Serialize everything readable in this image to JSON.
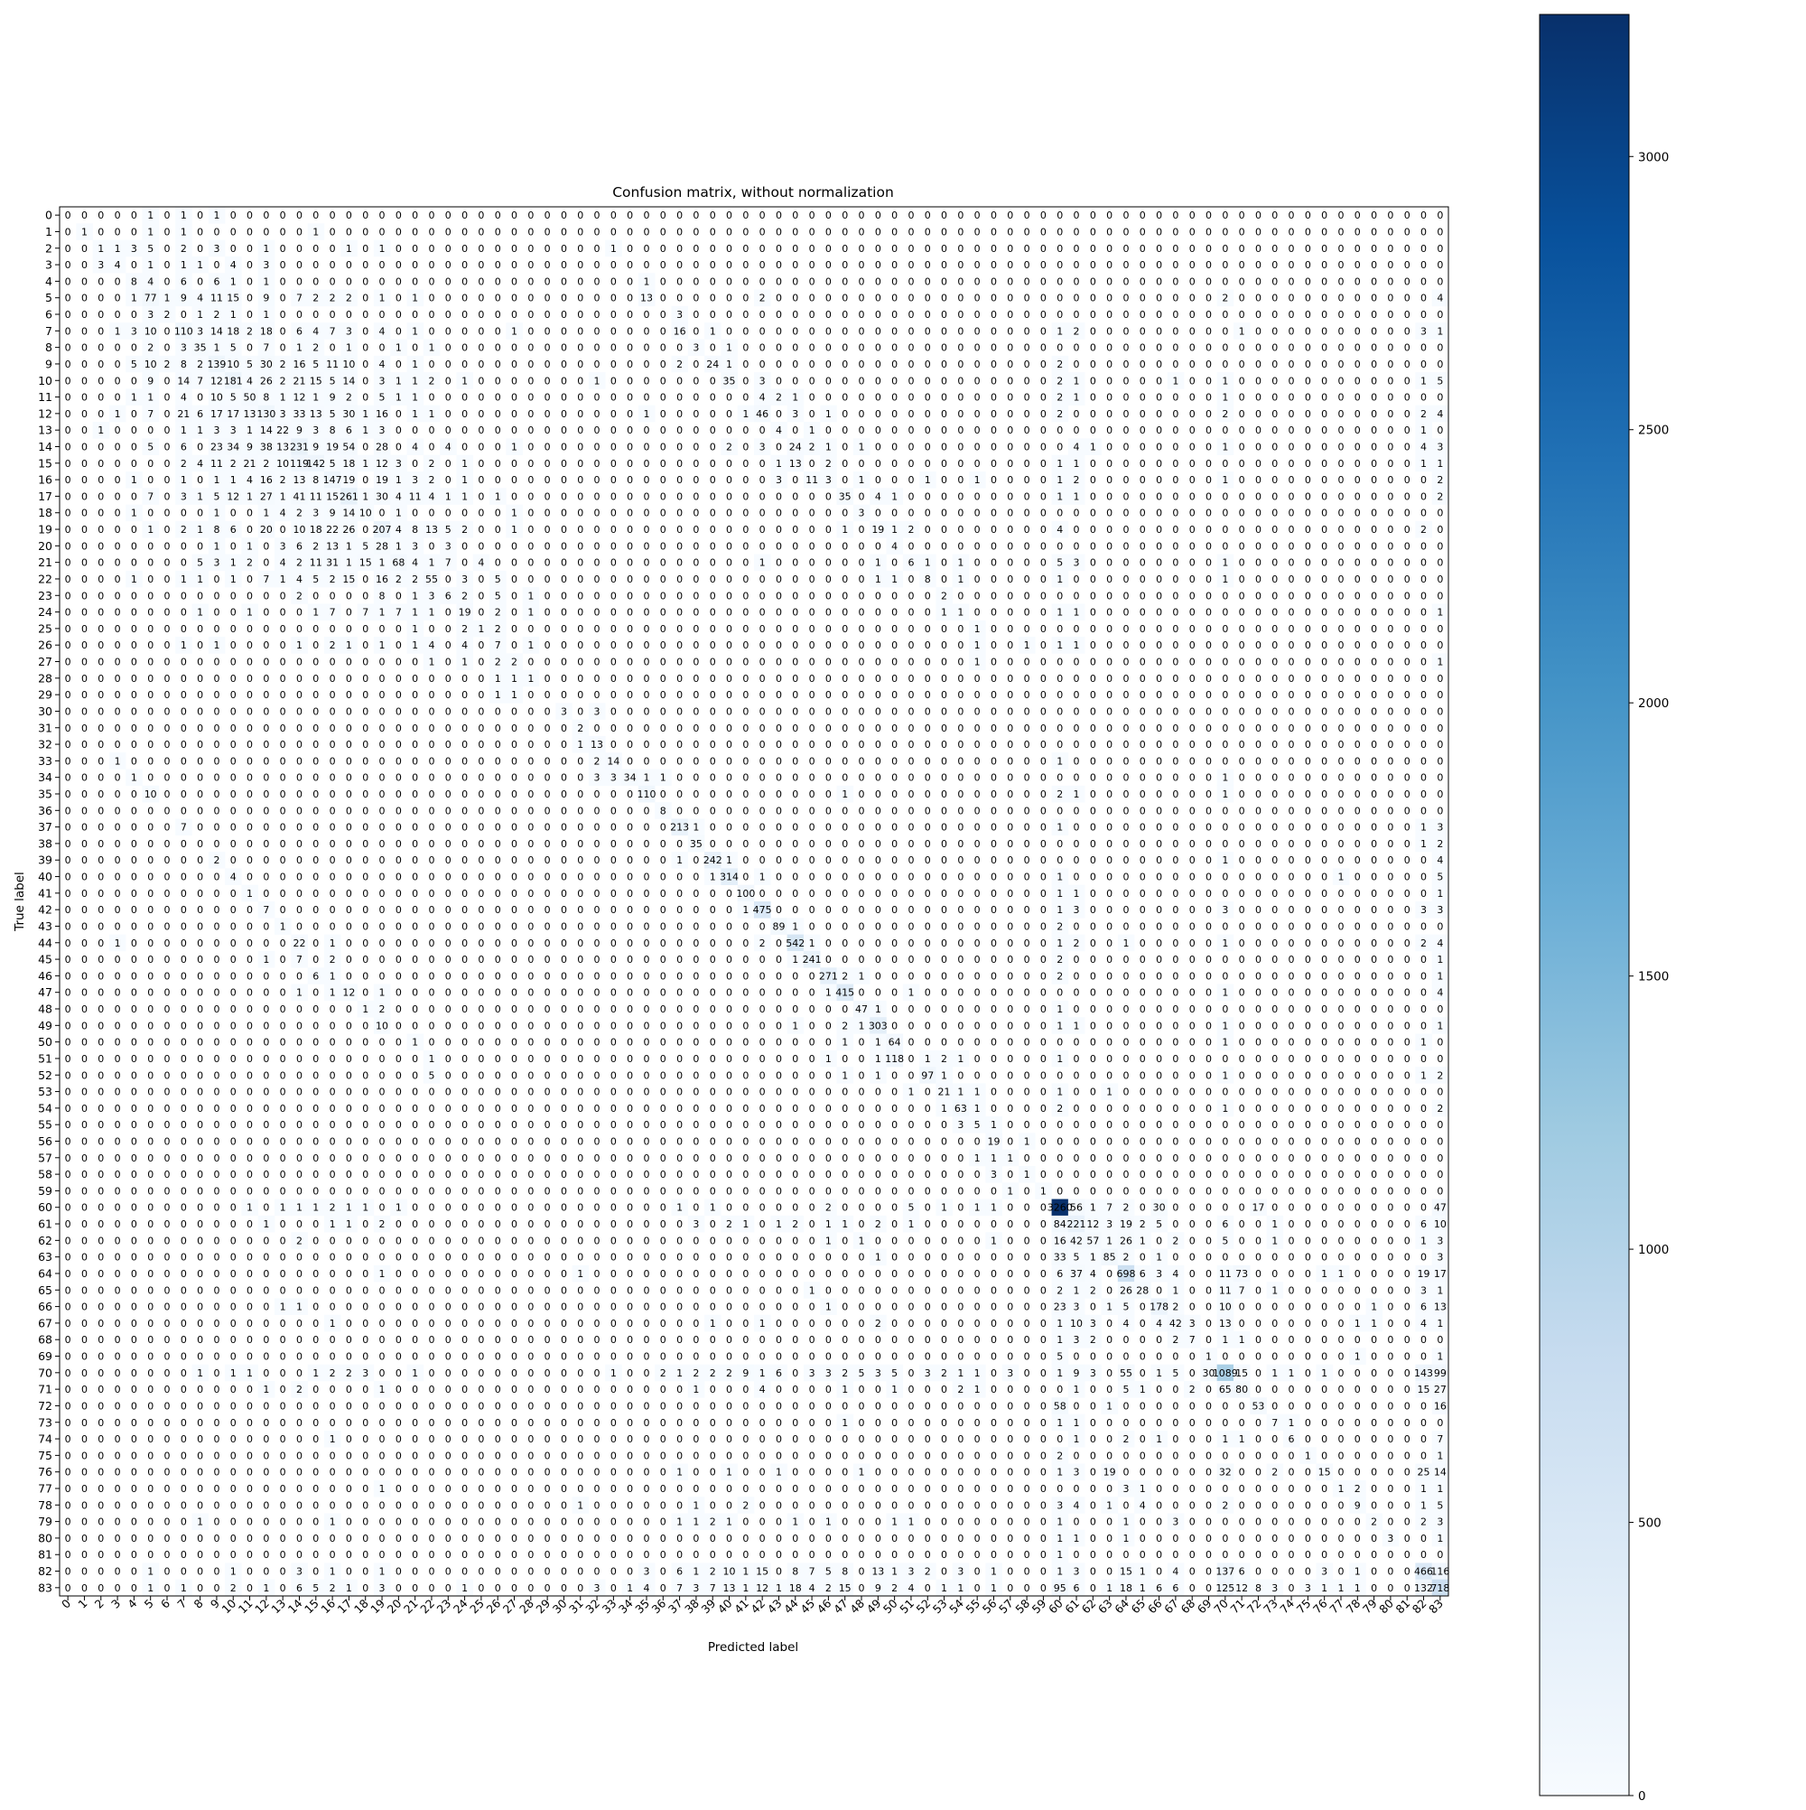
{
  "chart_data": {
    "type": "heatmap",
    "title": "Confusion matrix, without normalization",
    "xlabel": "Predicted label",
    "ylabel": "True label",
    "classes": [
      "0",
      "1",
      "2",
      "3",
      "4",
      "5",
      "6",
      "7",
      "8",
      "9",
      "10",
      "11",
      "12",
      "13",
      "14",
      "15",
      "16",
      "17",
      "18",
      "19",
      "20",
      "21",
      "22",
      "23",
      "24",
      "25",
      "26",
      "27",
      "28",
      "29",
      "30",
      "31",
      "32",
      "33",
      "34",
      "35",
      "36",
      "37",
      "38",
      "39",
      "40",
      "41",
      "42",
      "43",
      "44",
      "45",
      "46",
      "47",
      "48",
      "49",
      "50",
      "51",
      "52",
      "53",
      "54",
      "55",
      "56",
      "57",
      "58",
      "59",
      "60",
      "61",
      "62",
      "63",
      "64",
      "65",
      "66",
      "67",
      "68",
      "69",
      "70",
      "71",
      "72",
      "73",
      "74",
      "75",
      "76",
      "77",
      "78",
      "79",
      "80",
      "81",
      "82",
      "83"
    ],
    "colormap": "Blues",
    "color_range": [
      0,
      3260
    ],
    "colorbar_ticks": [
      "0",
      "500",
      "1000",
      "1500",
      "2000",
      "2500",
      "3000"
    ],
    "colorbar_tick_values": [
      0,
      500,
      1000,
      1500,
      2000,
      2500,
      3000
    ],
    "rows": [
      "0 0 0 0 0 1 0 1 0 1 0 0 0 0 0 0 0 0 0 0 0 0 0 0 0 0 0 0 0 0 0 0 0 0 0 0 0 0 0 0 0 0 0 0 0 0 0 0 0 0 0 0 0 0 0 0 0 0 0 0 0 0 0 0 0 0 0 0 0 0 0 0 0 0 0 0 0 0 0 0 0 0 0 0",
      "0 1 0 0 0 1 0 1 0 0 0 0 0 0 0 1 0 0 0 0 0 0 0 0 0 0 0 0 0 0 0 0 0 0 0 0 0 0 0 0 0 0 0 0 0 0 0 0 0 0 0 0 0 0 0 0 0 0 0 0 0 0 0 0 0 0 0 0 0 0 0 0 0 0 0 0 0 0 0 0 0 0 0 0",
      "0 0 1 1 3 5 0 2 0 3 0 0 1 0 0 0 0 1 0 1 0 0 0 0 0 0 0 0 0 0 0 0 0 1 0 0 0 0 0 0 0 0 0 0 0 0 0 0 0 0 0 0 0 0 0 0 0 0 0 0 0 0 0 0 0 0 0 0 0 0 0 0 0 0 0 0 0 0 0 0 0 0 0 0",
      "0 0 3 4 0 1 0 1 1 0 4 0 3 0 0 0 0 0 0 0 0 0 0 0 0 0 0 0 0 0 0 0 0 0 0 0 0 0 0 0 0 0 0 0 0 0 0 0 0 0 0 0 0 0 0 0 0 0 0 0 0 0 0 0 0 0 0 0 0 0 0 0 0 0 0 0 0 0 0 0 0 0 0 0",
      "0 0 0 0 8 4 0 6 0 6 1 0 1 0 0 0 0 0 0 0 0 0 0 0 0 0 0 0 0 0 0 0 0 0 0 1 0 0 0 0 0 0 0 0 0 0 0 0 0 0 0 0 0 0 0 0 0 0 0 0 0 0 0 0 0 0 0 0 0 0 0 0 0 0 0 0 0 0 0 0 0 0 0 0",
      "0 0 0 0 1 77 1 9 4 11 15 0 9 0 7 2 2 2 0 1 0 1 0 0 0 0 0 0 0 0 0 0 0 0 0 13 0 0 0 0 0 0 2 0 0 0 0 0 0 0 0 0 0 0 0 0 0 0 0 0 0 0 0 0 0 0 0 0 0 0 2 0 0 0 0 0 0 0 0 0 0 0 0 4",
      "0 0 0 0 0 3 2 0 1 2 1 0 1 0 0 0 0 0 0 0 0 0 0 0 0 0 0 0 0 0 0 0 0 0 0 0 0 3 0 0 0 0 0 0 0 0 0 0 0 0 0 0 0 0 0 0 0 0 0 0 0 0 0 0 0 0 0 0 0 0 0 0 0 0 0 0 0 0 0 0 0 0 0 0",
      "0 0 0 1 3 10 0 110 3 14 18 2 18 0 6 4 7 3 0 4 0 1 0 0 0 0 0 1 0 0 0 0 0 0 0 0 0 16 0 1 0 0 0 0 0 0 0 0 0 0 0 0 0 0 0 0 0 0 0 0 1 2 0 0 0 0 0 0 0 0 0 1 0 0 0 0 0 0 0 0 0 0 3 1",
      "0 0 0 0 0 2 0 3 35 1 5 0 7 0 1 2 0 1 0 0 1 0 1 0 0 0 0 0 0 0 0 0 0 0 0 0 0 0 3 0 1 0 0 0 0 0 0 0 0 0 0 0 0 0 0 0 0 0 0 0 0 0 0 0 0 0 0 0 0 0 0 0 0 0 0 0 0 0 0 0 0 0 0 0",
      "0 0 0 0 5 10 2 8 2 139 10 5 30 2 16 5 11 10 0 4 0 1 0 0 0 0 0 0 0 0 0 0 0 0 0 0 0 2 0 24 1 0 0 0 0 0 0 0 0 0 0 0 0 0 0 0 0 0 0 0 2 0 0 0 0 0 0 0 0 0 0 0 0 0 0 0 0 0 0 0 0 0 0 0",
      "0 0 0 0 0 9 0 14 7 12 181 4 26 2 21 15 5 14 0 3 1 1 2 0 1 0 0 0 0 0 0 0 1 0 0 0 0 0 0 0 35 0 3 0 0 0 0 0 0 0 0 0 0 0 0 0 0 0 0 0 2 1 0 0 0 0 0 1 0 0 1 0 0 0 0 0 0 0 0 0 0 0 1 5",
      "0 0 0 0 1 1 0 4 0 10 5 50 8 1 12 1 9 2 0 5 1 1 0 0 0 0 0 0 0 0 0 0 0 0 0 0 0 0 0 0 0 0 4 2 1 0 0 0 0 0 0 0 0 0 0 0 0 0 0 0 2 1 0 0 0 0 0 0 0 0 1 0 0 0 0 0 0 0 0 0 0 0 0 0",
      "0 0 0 1 0 7 0 21 6 17 17 13 130 3 33 13 5 30 1 16 0 1 1 0 0 0 0 0 0 0 0 0 0 0 0 1 0 0 0 0 0 1 46 0 3 0 1 0 0 0 0 0 0 0 0 0 0 0 0 0 2 0 0 0 0 0 0 0 0 0 2 0 0 0 0 0 0 0 0 0 0 0 2 4",
      "0 0 1 0 0 0 0 1 1 3 3 1 14 22 9 3 8 6 1 3 0 0 0 0 0 0 0 0 0 0 0 0 0 0 0 0 0 0 0 0 0 0 0 4 0 1 0 0 0 0 0 0 0 0 0 0 0 0 0 0 0 0 0 0 0 0 0 0 0 0 0 0 0 0 0 0 0 0 0 0 0 0 1 0",
      "0 0 0 0 0 5 0 6 0 23 34 9 38 13 231 9 19 54 0 28 0 4 0 4 0 0 0 1 0 0 0 0 0 0 0 0 0 0 0 0 2 0 3 0 24 2 1 0 1 0 0 0 0 0 0 0 0 0 0 0 0 4 1 0 0 0 0 0 0 0 1 0 0 0 0 0 0 0 0 0 0 0 4 3",
      "0 0 0 0 0 0 0 2 4 11 2 21 2 10 119 142 5 18 1 12 3 0 2 0 1 0 0 0 0 0 0 0 0 0 0 0 0 0 0 0 0 0 0 1 13 0 2 0 0 0 0 0 0 0 0 0 0 0 0 0 1 1 0 0 0 0 0 0 0 0 0 0 0 0 0 0 0 0 0 0 0 0 1 1",
      "0 0 0 0 1 0 0 1 0 1 1 4 16 2 13 8 147 19 0 19 1 3 2 0 1 0 0 0 0 0 0 0 0 0 0 0 0 0 0 0 0 0 0 3 0 11 3 0 1 0 0 0 1 0 0 1 0 0 0 0 1 2 0 0 0 0 0 0 0 0 1 0 0 0 0 0 0 0 0 0 0 0 0 2",
      "0 0 0 0 0 7 0 3 1 5 12 1 27 1 41 11 15 261 1 30 4 11 4 1 1 0 1 0 0 0 0 0 0 0 0 0 0 0 0 0 0 0 0 0 0 0 0 35 0 4 1 0 0 0 0 0 0 0 0 0 1 1 0 0 0 0 0 0 0 0 0 0 0 0 0 0 0 0 0 0 0 0 0 2",
      "0 0 0 0 1 0 0 0 0 1 0 0 1 4 2 3 9 14 10 0 1 0 0 0 0 0 0 1 0 0 0 0 0 0 0 0 0 0 0 0 0 0 0 0 0 0 0 0 3 0 0 0 0 0 0 0 0 0 0 0 0 0 0 0 0 0 0 0 0 0 0 0 0 0 0 0 0 0 0 0 0 0 0 0",
      "0 0 0 0 0 1 0 2 1 8 6 0 20 0 10 18 22 26 0 207 4 8 13 5 2 0 0 1 0 0 0 0 0 0 0 0 0 0 0 0 0 0 0 0 0 0 0 1 0 19 1 2 0 0 0 0 0 0 0 0 4 0 0 0 0 0 0 0 0 0 0 0 0 0 0 0 0 0 0 0 0 0 2 0",
      "0 0 0 0 0 0 0 0 0 1 0 1 0 3 6 2 13 1 5 28 1 3 0 3 0 0 0 0 0 0 0 0 0 0 0 0 0 0 0 0 0 0 0 0 0 0 0 0 0 0 4 0 0 0 0 0 0 0 0 0 0 0 0 0 0 0 0 0 0 0 0 0 0 0 0 0 0 0 0 0 0 0 0 0",
      "0 0 0 0 0 0 0 0 5 3 1 2 0 4 2 11 31 1 15 1 68 4 1 7 0 4 0 0 0 0 0 0 0 0 0 0 0 0 0 0 0 0 1 0 0 0 0 0 0 1 0 6 1 0 1 0 0 0 0 0 5 3 0 0 0 0 0 0 0 0 1 0 0 0 0 0 0 0 0 0 0 0 0 0",
      "0 0 0 0 1 0 0 1 1 0 1 0 7 1 4 5 2 15 0 16 2 2 55 0 3 0 5 0 0 0 0 0 0 0 0 0 0 0 0 0 0 0 0 0 0 0 0 0 0 1 1 0 8 0 1 0 0 0 0 0 1 0 0 0 0 0 0 0 0 0 1 0 0 0 0 0 0 0 0 0 0 0 0 0",
      "0 0 0 0 0 0 0 0 0 0 0 0 0 0 2 0 0 0 0 8 0 1 3 6 2 0 5 0 1 0 0 0 0 0 0 0 0 0 0 0 0 0 0 0 0 0 0 0 0 0 0 0 0 2 0 0 0 0 0 0 0 0 0 0 0 0 0 0 0 0 0 0 0 0 0 0 0 0 0 0 0 0 0 0",
      "0 0 0 0 0 0 0 0 1 0 0 1 0 0 0 1 7 0 7 1 7 1 1 0 19 0 2 0 1 0 0 0 0 0 0 0 0 0 0 0 0 0 0 0 0 0 0 0 0 0 0 0 0 1 1 0 0 0 0 0 1 1 0 0 0 0 0 0 0 0 0 0 0 0 0 0 0 0 0 0 0 0 0 1",
      "0 0 0 0 0 0 0 0 0 0 0 0 0 0 0 0 0 0 0 0 0 1 0 0 2 1 2 0 0 0 0 0 0 0 0 0 0 0 0 0 0 0 0 0 0 0 0 0 0 0 0 0 0 0 0 1 0 0 0 0 0 0 0 0 0 0 0 0 0 0 0 0 0 0 0 0 0 0 0 0 0 0 0 0",
      "0 0 0 0 0 0 0 1 0 1 0 0 0 0 1 0 2 1 0 1 0 1 4 0 4 0 7 0 1 0 0 0 0 0 0 0 0 0 0 0 0 0 0 0 0 0 0 0 0 0 0 0 0 0 0 1 0 0 1 0 1 1 0 0 0 0 0 0 0 0 0 0 0 0 0 0 0 0 0 0 0 0 0 0",
      "0 0 0 0 0 0 0 0 0 0 0 0 0 0 0 0 0 0 0 0 0 0 1 0 1 0 2 2 0 0 0 0 0 0 0 0 0 0 0 0 0 0 0 0 0 0 0 0 0 0 0 0 0 0 0 1 0 0 0 0 0 0 0 0 0 0 0 0 0 0 0 0 0 0 0 0 0 0 0 0 0 0 0 1",
      "0 0 0 0 0 0 0 0 0 0 0 0 0 0 0 0 0 0 0 0 0 0 0 0 0 0 1 1 1 0 0 0 0 0 0 0 0 0 0 0 0 0 0 0 0 0 0 0 0 0 0 0 0 0 0 0 0 0 0 0 0 0 0 0 0 0 0 0 0 0 0 0 0 0 0 0 0 0 0 0 0 0 0 0",
      "0 0 0 0 0 0 0 0 0 0 0 0 0 0 0 0 0 0 0 0 0 0 0 0 0 0 1 1 0 0 0 0 0 0 0 0 0 0 0 0 0 0 0 0 0 0 0 0 0 0 0 0 0 0 0 0 0 0 0 0 0 0 0 0 0 0 0 0 0 0 0 0 0 0 0 0 0 0 0 0 0 0 0 0",
      "0 0 0 0 0 0 0 0 0 0 0 0 0 0 0 0 0 0 0 0 0 0 0 0 0 0 0 0 0 0 3 0 3 0 0 0 0 0 0 0 0 0 0 0 0 0 0 0 0 0 0 0 0 0 0 0 0 0 0 0 0 0 0 0 0 0 0 0 0 0 0 0 0 0 0 0 0 0 0 0 0 0 0 0",
      "0 0 0 0 0 0 0 0 0 0 0 0 0 0 0 0 0 0 0 0 0 0 0 0 0 0 0 0 0 0 0 2 0 0 0 0 0 0 0 0 0 0 0 0 0 0 0 0 0 0 0 0 0 0 0 0 0 0 0 0 0 0 0 0 0 0 0 0 0 0 0 0 0 0 0 0 0 0 0 0 0 0 0 0",
      "0 0 0 0 0 0 0 0 0 0 0 0 0 0 0 0 0 0 0 0 0 0 0 0 0 0 0 0 0 0 0 1 13 0 0 0 0 0 0 0 0 0 0 0 0 0 0 0 0 0 0 0 0 0 0 0 0 0 0 0 0 0 0 0 0 0 0 0 0 0 0 0 0 0 0 0 0 0 0 0 0 0 0 0",
      "0 0 0 1 0 0 0 0 0 0 0 0 0 0 0 0 0 0 0 0 0 0 0 0 0 0 0 0 0 0 0 0 2 14 0 0 0 0 0 0 0 0 0 0 0 0 0 0 0 0 0 0 0 0 0 0 0 0 0 0 1 0 0 0 0 0 0 0 0 0 0 0 0 0 0 0 0 0 0 0 0 0 0 0",
      "0 0 0 0 1 0 0 0 0 0 0 0 0 0 0 0 0 0 0 0 0 0 0 0 0 0 0 0 0 0 0 0 3 3 34 1 1 0 0 0 0 0 0 0 0 0 0 0 0 0 0 0 0 0 0 0 0 0 0 0 0 0 0 0 0 0 0 0 0 0 1 0 0 0 0 0 0 0 0 0 0 0 0 0",
      "0 0 0 0 0 10 0 0 0 0 0 0 0 0 0 0 0 0 0 0 0 0 0 0 0 0 0 0 0 0 0 0 0 0 0 110 0 0 0 0 0 0 0 0 0 0 0 1 0 0 0 0 0 0 0 0 0 0 0 0 2 1 0 0 0 0 0 0 0 0 1 0 0 0 0 0 0 0 0 0 0 0 0 0",
      "0 0 0 0 0 0 0 0 0 0 0 0 0 0 0 0 0 0 0 0 0 0 0 0 0 0 0 0 0 0 0 0 0 0 0 0 8 0 0 0 0 0 0 0 0 0 0 0 0 0 0 0 0 0 0 0 0 0 0 0 0 0 0 0 0 0 0 0 0 0 0 0 0 0 0 0 0 0 0 0 0 0 0 0",
      "0 0 0 0 0 0 0 7 0 0 0 0 0 0 0 0 0 0 0 0 0 0 0 0 0 0 0 0 0 0 0 0 0 0 0 0 0 213 1 0 0 0 0 0 0 0 0 0 0 0 0 0 0 0 0 0 0 0 0 0 1 0 0 0 0 0 0 0 0 0 0 0 0 0 0 0 0 0 0 0 0 0 1 3",
      "0 0 0 0 0 0 0 0 0 0 0 0 0 0 0 0 0 0 0 0 0 0 0 0 0 0 0 0 0 0 0 0 0 0 0 0 0 0 35 0 0 0 0 0 0 0 0 0 0 0 0 0 0 0 0 0 0 0 0 0 0 0 0 0 0 0 0 0 0 0 0 0 0 0 0 0 0 0 0 0 0 0 1 2",
      "0 0 0 0 0 0 0 0 0 2 0 0 0 0 0 0 0 0 0 0 0 0 0 0 0 0 0 0 0 0 0 0 0 0 0 0 0 1 0 242 1 0 0 0 0 0 0 0 0 0 0 0 0 0 0 0 0 0 0 0 0 0 0 0 0 0 0 0 0 0 1 0 0 0 0 0 0 0 0 0 0 0 0 4",
      "0 0 0 0 0 0 0 0 0 0 4 0 0 0 0 0 0 0 0 0 0 0 0 0 0 0 0 0 0 0 0 0 0 0 0 0 0 0 0 1 314 0 1 0 0 0 0 0 0 0 0 0 0 0 0 0 0 0 0 0 1 0 0 0 0 0 0 0 0 0 0 0 0 0 0 0 0 1 0 0 0 0 0 5",
      "0 0 0 0 0 0 0 0 0 0 0 1 0 0 0 0 0 0 0 0 0 0 0 0 0 0 0 0 0 0 0 0 0 0 0 0 0 0 0 0 0 100 0 0 0 0 0 0 0 0 0 0 0 0 0 0 0 0 0 0 1 1 0 0 0 0 0 0 0 0 0 0 0 0 0 0 0 0 0 0 0 0 0 1",
      "0 0 0 0 0 0 0 0 0 0 0 0 7 0 0 0 0 0 0 0 0 0 0 0 0 0 0 0 0 0 0 0 0 0 0 0 0 0 0 0 0 1 475 0 0 0 0 0 0 0 0 0 0 0 0 0 0 0 0 0 1 3 0 0 0 0 0 0 0 0 3 0 0 0 0 0 0 0 0 0 0 0 3 3",
      "0 0 0 0 0 0 0 0 0 0 0 0 0 1 0 0 0 0 0 0 0 0 0 0 0 0 0 0 0 0 0 0 0 0 0 0 0 0 0 0 0 0 0 89 1 0 0 0 0 0 0 0 0 0 0 0 0 0 0 0 2 0 0 0 0 0 0 0 0 0 0 0 0 0 0 0 0 0 0 0 0 0 0 0",
      "0 0 0 1 0 0 0 0 0 0 0 0 0 0 22 0 1 0 0 0 0 0 0 0 0 0 0 0 0 0 0 0 0 0 0 0 0 0 0 0 0 0 2 0 542 1 0 0 0 0 0 0 0 0 0 0 0 0 0 0 1 2 0 0 1 0 0 0 0 0 1 0 0 0 0 0 0 0 0 0 0 0 2 4",
      "0 0 0 0 0 0 0 0 0 0 0 0 1 0 7 0 2 0 0 0 0 0 0 0 0 0 0 0 0 0 0 0 0 0 0 0 0 0 0 0 0 0 0 0 1 241 0 0 0 0 0 0 0 0 0 0 0 0 0 0 2 0 0 0 0 0 0 0 0 0 0 0 0 0 0 0 0 0 0 0 0 0 0 1",
      "0 0 0 0 0 0 0 0 0 0 0 0 0 0 0 6 1 0 0 0 0 0 0 0 0 0 0 0 0 0 0 0 0 0 0 0 0 0 0 0 0 0 0 0 0 0 271 2 1 0 0 0 0 0 0 0 0 0 0 0 2 0 0 0 0 0 0 0 0 0 0 0 0 0 0 0 0 0 0 0 0 0 0 1",
      "0 0 0 0 0 0 0 0 0 0 0 0 0 0 1 0 1 12 0 1 0 0 0 0 0 0 0 0 0 0 0 0 0 0 0 0 0 0 0 0 0 0 0 0 0 0 1 415 0 0 0 1 0 0 0 0 0 0 0 0 0 0 0 0 0 0 0 0 0 0 1 0 0 0 0 0 0 0 0 0 0 0 0 4",
      "0 0 0 0 0 0 0 0 0 0 0 0 0 0 0 0 0 0 1 2 0 0 0 0 0 0 0 0 0 0 0 0 0 0 0 0 0 0 0 0 0 0 0 0 0 0 0 0 47 1 0 0 0 0 0 0 0 0 0 0 1 0 0 0 0 0 0 0 0 0 0 0 0 0 0 0 0 0 0 0 0 0 0 0",
      "0 0 0 0 0 0 0 0 0 0 0 0 0 0 0 0 0 0 0 10 0 0 0 0 0 0 0 0 0 0 0 0 0 0 0 0 0 0 0 0 0 0 0 0 1 0 0 2 1 303 0 0 0 0 0 0 0 0 0 0 1 1 0 0 0 0 0 0 0 0 1 0 0 0 0 0 0 0 0 0 0 0 0 1",
      "0 0 0 0 0 0 0 0 0 0 0 0 0 0 0 0 0 0 0 0 0 1 0 0 0 0 0 0 0 0 0 0 0 0 0 0 0 0 0 0 0 0 0 0 0 0 0 1 0 1 64 0 0 0 0 0 0 0 0 0 0 0 0 0 0 0 0 0 0 0 1 0 0 0 0 0 0 0 0 0 0 0 1 0",
      "0 0 0 0 0 0 0 0 0 0 0 0 0 0 0 0 0 0 0 0 0 0 1 0 0 0 0 0 0 0 0 0 0 0 0 0 0 0 0 0 0 0 0 0 0 0 1 0 0 1 118 0 1 2 1 0 0 0 0 0 1 0 0 0 0 0 0 0 0 0 0 0 0 0 0 0 0 0 0 0 0 0 0 0",
      "0 0 0 0 0 0 0 0 0 0 0 0 0 0 0 0 0 0 0 0 0 0 5 0 0 0 0 0 0 0 0 0 0 0 0 0 0 0 0 0 0 0 0 0 0 0 0 1 0 1 0 0 97 1 0 0 0 0 0 0 0 0 0 0 0 0 0 0 0 0 1 0 0 0 0 0 0 0 0 0 0 0 1 2",
      "0 0 0 0 0 0 0 0 0 0 0 0 0 0 0 0 0 0 0 0 0 0 0 0 0 0 0 0 0 0 0 0 0 0 0 0 0 0 0 0 0 0 0 0 0 0 0 0 0 0 0 1 0 21 1 1 0 0 0 0 1 0 0 1 0 0 0 0 0 0 0 0 0 0 0 0 0 0 0 0 0 0 0 0",
      "0 0 0 0 0 0 0 0 0 0 0 0 0 0 0 0 0 0 0 0 0 0 0 0 0 0 0 0 0 0 0 0 0 0 0 0 0 0 0 0 0 0 0 0 0 0 0 0 0 0 0 0 0 1 63 1 0 0 0 0 2 0 0 0 0 0 0 0 0 0 1 0 0 0 0 0 0 0 0 0 0 0 0 2",
      "0 0 0 0 0 0 0 0 0 0 0 0 0 0 0 0 0 0 0 0 0 0 0 0 0 0 0 0 0 0 0 0 0 0 0 0 0 0 0 0 0 0 0 0 0 0 0 0 0 0 0 0 0 0 3 5 1 0 0 0 0 0 0 0 0 0 0 0 0 0 0 0 0 0 0 0 0 0 0 0 0 0 0 0",
      "0 0 0 0 0 0 0 0 0 0 0 0 0 0 0 0 0 0 0 0 0 0 0 0 0 0 0 0 0 0 0 0 0 0 0 0 0 0 0 0 0 0 0 0 0 0 0 0 0 0 0 0 0 0 0 0 19 0 1 0 0 0 0 0 0 0 0 0 0 0 0 0 0 0 0 0 0 0 0 0 0 0 0 0",
      "0 0 0 0 0 0 0 0 0 0 0 0 0 0 0 0 0 0 0 0 0 0 0 0 0 0 0 0 0 0 0 0 0 0 0 0 0 0 0 0 0 0 0 0 0 0 0 0 0 0 0 0 0 0 0 1 1 1 0 0 0 0 0 0 0 0 0 0 0 0 0 0 0 0 0 0 0 0 0 0 0 0 0 0",
      "0 0 0 0 0 0 0 0 0 0 0 0 0 0 0 0 0 0 0 0 0 0 0 0 0 0 0 0 0 0 0 0 0 0 0 0 0 0 0 0 0 0 0 0 0 0 0 0 0 0 0 0 0 0 0 0 3 0 1 0 0 0 0 0 0 0 0 0 0 0 0 0 0 0 0 0 0 0 0 0 0 0 0 0",
      "0 0 0 0 0 0 0 0 0 0 0 0 0 0 0 0 0 0 0 0 0 0 0 0 0 0 0 0 0 0 0 0 0 0 0 0 0 0 0 0 0 0 0 0 0 0 0 0 0 0 0 0 0 0 0 0 0 1 0 1 0 0 0 0 0 0 0 0 0 0 0 0 0 0 0 0 0 0 0 0 0 0 0 0",
      "0 0 0 0 0 0 0 0 0 0 0 1 0 1 1 1 2 1 1 0 1 0 0 0 0 0 0 0 0 0 0 0 0 0 0 0 0 1 0 1 0 0 0 0 0 0 2 0 0 0 0 5 0 1 0 1 1 0 0 0 3260 56 1 7 2 0 30 0 0 0 0 0 17 0 0 0 0 0 0 0 0 0 0 47",
      "0 0 0 0 0 0 0 0 0 0 0 0 1 0 0 0 1 1 0 2 0 0 0 0 0 0 0 0 0 0 0 0 0 0 0 0 0 0 3 0 2 1 0 1 2 0 1 1 0 2 0 1 0 0 0 0 0 0 0 0 84 221 12 3 19 2 5 0 0 0 6 0 0 1 0 0 0 0 0 0 0 0 6 10",
      "0 0 0 0 0 0 0 0 0 0 0 0 0 0 2 0 0 0 0 0 0 0 0 0 0 0 0 0 0 0 0 0 0 0 0 0 0 0 0 0 0 0 0 0 0 0 1 0 1 0 0 0 0 0 0 0 1 0 0 0 16 42 57 1 26 1 0 2 0 0 5 0 0 1 0 0 0 0 0 0 0 0 1 3",
      "0 0 0 0 0 0 0 0 0 0 0 0 0 0 0 0 0 0 0 0 0 0 0 0 0 0 0 0 0 0 0 0 0 0 0 0 0 0 0 0 0 0 0 0 0 0 0 0 0 1 0 0 0 0 0 0 0 0 0 0 33 5 1 85 2 0 1 0 0 0 0 0 0 0 0 0 0 0 0 0 0 0 0 3",
      "0 0 0 0 0 0 0 0 0 0 0 0 0 0 0 0 0 0 0 1 0 0 0 0 0 0 0 0 0 0 0 1 0 0 0 0 0 0 0 0 0 0 0 0 0 0 0 0 0 0 0 0 0 0 0 0 0 0 0 0 6 37 4 0 698 6 3 4 0 0 11 73 0 0 0 0 1 1 0 0 0 0 19 17",
      "0 0 0 0 0 0 0 0 0 0 0 0 0 0 0 0 0 0 0 0 0 0 0 0 0 0 0 0 0 0 0 0 0 0 0 0 0 0 0 0 0 0 0 0 0 1 0 0 0 0 0 0 0 0 0 0 0 0 0 0 2 1 2 0 26 28 0 1 0 0 11 7 0 1 0 0 0 0 0 0 0 0 3 1",
      "0 0 0 0 0 0 0 0 0 0 0 0 0 1 1 0 0 0 0 0 0 0 0 0 0 0 0 0 0 0 0 0 0 0 0 0 0 0 0 0 0 0 0 0 0 0 1 0 0 0 0 0 0 0 0 0 0 0 0 0 23 3 0 1 5 0 178 2 0 0 10 0 0 0 0 0 0 0 0 1 0 0 6 13",
      "0 0 0 0 0 0 0 0 0 0 0 0 0 0 0 0 1 0 0 0 0 0 0 0 0 0 0 0 0 0 0 0 0 0 0 0 0 0 0 1 0 0 1 0 0 0 0 0 0 2 0 0 0 0 0 0 0 0 0 0 1 10 3 0 4 0 4 42 3 0 13 0 0 0 0 0 0 0 1 1 0 0 4 1",
      "0 0 0 0 0 0 0 0 0 0 0 0 0 0 0 0 0 0 0 0 0 0 0 0 0 0 0 0 0 0 0 0 0 0 0 0 0 0 0 0 0 0 0 0 0 0 0 0 0 0 0 0 0 0 0 0 0 0 0 0 1 3 2 0 0 0 0 2 7 0 1 1 0 0 0 0 0 0 0 0 0 0 0 0",
      "0 0 0 0 0 0 0 0 0 0 0 0 0 0 0 0 0 0 0 0 0 0 0 0 0 0 0 0 0 0 0 0 0 0 0 0 0 0 0 0 0 0 0 0 0 0 0 0 0 0 0 0 0 0 0 0 0 0 0 0 5 0 0 0 0 0 0 0 0 1 0 0 0 0 0 0 0 0 1 0 0 0 0 1",
      "0 0 0 0 0 0 0 0 1 0 1 1 0 0 0 1 2 2 3 0 0 1 0 0 0 0 0 0 0 0 0 0 0 1 0 0 2 1 2 2 2 9 1 6 0 3 3 2 5 3 5 0 3 2 1 1 0 3 0 0 1 9 3 0 55 0 1 5 0 30 1089 15 0 1 1 0 1 0 0 0 0 0 143 99",
      "0 0 0 0 0 0 0 0 0 0 0 0 1 0 2 0 0 0 0 1 0 0 0 0 0 0 0 0 0 0 0 0 0 0 0 0 0 0 1 0 0 0 4 0 0 0 0 1 0 0 1 0 0 0 2 1 0 0 0 0 0 1 0 0 5 1 0 0 2 0 65 80 0 0 0 0 0 0 0 0 0 0 15 27",
      "0 0 0 0 0 0 0 0 0 0 0 0 0 0 0 0 0 0 0 0 0 0 0 0 0 0 0 0 0 0 0 0 0 0 0 0 0 0 0 0 0 0 0 0 0 0 0 0 0 0 0 0 0 0 0 0 0 0 0 0 58 0 0 1 0 0 0 0 0 0 0 0 53 0 0 0 0 0 0 0 0 0 0 16",
      "0 0 0 0 0 0 0 0 0 0 0 0 0 0 0 0 0 0 0 0 0 0 0 0 0 0 0 0 0 0 0 0 0 0 0 0 0 0 0 0 0 0 0 0 0 0 0 1 0 0 0 0 0 0 0 0 0 0 0 0 1 1 0 0 0 0 0 0 0 0 0 0 0 7 1 0 0 0 0 0 0 0 0 0",
      "0 0 0 0 0 0 0 0 0 0 0 0 0 0 0 0 1 0 0 0 0 0 0 0 0 0 0 0 0 0 0 0 0 0 0 0 0 0 0 0 0 0 0 0 0 0 0 0 0 0 0 0 0 0 0 0 0 0 0 0 0 1 0 0 2 0 1 0 0 0 1 1 0 0 6 0 0 0 0 0 0 0 0 7",
      "0 0 0 0 0 0 0 0 0 0 0 0 0 0 0 0 0 0 0 0 0 0 0 0 0 0 0 0 0 0 0 0 0 0 0 0 0 0 0 0 0 0 0 0 0 0 0 0 0 0 0 0 0 0 0 0 0 0 0 0 2 0 0 0 0 0 0 0 0 0 0 0 0 0 0 1 0 0 0 0 0 0 0 1",
      "0 0 0 0 0 0 0 0 0 0 0 0 0 0 0 0 0 0 0 0 0 0 0 0 0 0 0 0 0 0 0 0 0 0 0 0 0 1 0 0 1 0 0 1 0 0 0 0 1 0 0 0 0 0 0 0 0 0 0 0 1 3 0 19 0 0 0 0 0 0 32 0 0 2 0 0 15 0 0 0 0 0 25 14",
      "0 0 0 0 0 0 0 0 0 0 0 0 0 0 0 0 0 0 0 1 0 0 0 0 0 0 0 0 0 0 0 0 0 0 0 0 0 0 0 0 0 0 0 0 0 0 0 0 0 0 0 0 0 0 0 0 0 0 0 0 0 0 0 0 3 1 0 0 0 0 0 0 0 0 0 0 0 1 2 0 0 0 1 1",
      "0 0 0 0 0 0 0 0 0 0 0 0 0 0 0 0 0 0 0 0 0 0 0 0 0 0 0 0 0 0 0 1 0 0 0 0 0 0 1 0 0 2 0 0 0 0 0 0 0 0 0 0 0 0 0 0 0 0 0 0 3 4 0 1 0 4 0 0 0 0 2 0 0 0 0 0 0 0 9 0 0 0 1 5",
      "0 0 0 0 0 0 0 0 1 0 0 0 0 0 0 0 1 0 0 0 0 0 0 0 0 0 0 0 0 0 0 0 0 0 0 0 0 1 1 2 1 0 0 0 1 0 1 0 0 0 1 1 0 0 0 0 0 0 0 0 1 0 0 0 1 0 0 3 0 0 0 0 0 0 0 0 0 0 0 2 0 0 2 3",
      "0 0 0 0 0 0 0 0 0 0 0 0 0 0 0 0 0 0 0 0 0 0 0 0 0 0 0 0 0 0 0 0 0 0 0 0 0 0 0 0 0 0 0 0 0 0 0 0 0 0 0 0 0 0 0 0 0 0 0 0 1 1 0 0 1 0 0 0 0 0 0 0 0 0 0 0 0 0 0 0 3 0 0 1",
      "0 0 0 0 0 0 0 0 0 0 0 0 0 0 0 0 0 0 0 0 0 0 0 0 0 0 0 0 0 0 0 0 0 0 0 0 0 0 0 0 0 0 0 0 0 0 0 0 0 0 0 0 0 0 0 0 0 0 0 0 1 0 0 0 0 0 0 0 0 0 0 0 0 0 0 0 0 0 0 0 0 0 0 0",
      "0 0 0 0 0 1 0 0 0 0 1 0 0 0 3 0 1 0 0 1 0 0 0 0 0 0 0 0 0 0 0 0 0 0 0 3 0 6 1 2 10 1 15 0 8 7 5 8 0 13 1 3 2 0 3 0 1 0 0 0 1 3 0 0 15 1 0 4 0 0 137 6 0 0 0 0 3 0 1 0 0 0 466 116",
      "0 0 0 0 0 1 0 1 0 0 2 0 1 0 6 5 2 1 0 3 0 0 0 0 1 0 0 0 0 0 0 0 3 0 1 4 0 7 3 7 13 1 12 1 18 4 2 15 0 9 2 4 0 1 1 0 1 0 0 0 95 6 0 1 18 1 6 6 0 0 125 12 8 3 0 3 1 1 1 0 0 0 132 718"
    ]
  }
}
